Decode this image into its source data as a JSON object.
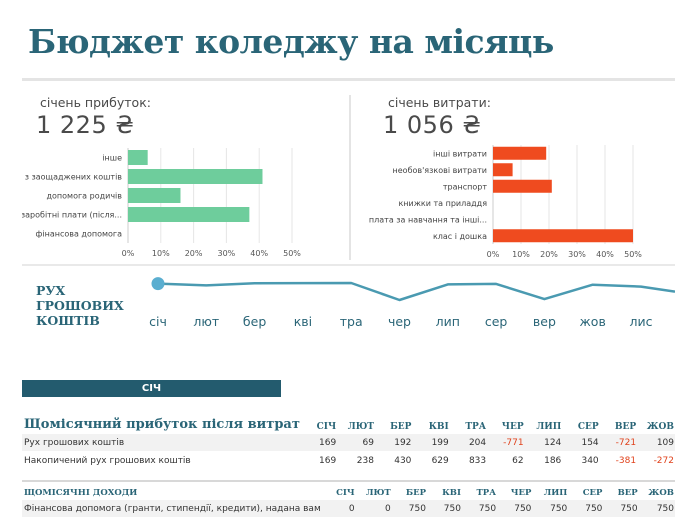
{
  "title": "Бюджет коледжу на місяць",
  "income_panel": {
    "label": "січень прибуток:",
    "total": "1 225 ₴",
    "color": "#6ecd9c",
    "chart_data": {
      "type": "bar",
      "orientation": "horizontal",
      "categories": [
        "інше",
        "з заощаджених коштів",
        "допомога родичів",
        "заробітні плати (після...",
        "фінансова допомога"
      ],
      "values": [
        6,
        41,
        16,
        37,
        0
      ],
      "x_ticks": [
        "0%",
        "10%",
        "20%",
        "30%",
        "40%",
        "50%"
      ],
      "xlim": [
        0,
        50
      ]
    }
  },
  "expense_panel": {
    "label": "січень витрати:",
    "total": "1 056 ₴",
    "color": "#ef4b1f",
    "chart_data": {
      "type": "bar",
      "orientation": "horizontal",
      "categories": [
        "інші витрати",
        "необов'язкові витрати",
        "транспорт",
        "книжки та приладдя",
        "плата за навчання та інші...",
        "клас і дошка"
      ],
      "values": [
        19,
        7,
        21,
        0,
        0,
        50
      ],
      "x_ticks": [
        "0%",
        "10%",
        "20%",
        "30%",
        "40%",
        "50%"
      ],
      "xlim": [
        0,
        50
      ]
    }
  },
  "cash_flow": {
    "title_lines": [
      "РУХ",
      "ГРОШОВИХ",
      "КОШТІВ"
    ],
    "color": "#4a9ab1",
    "months": [
      "січ",
      "лют",
      "бер",
      "кві",
      "тра",
      "чер",
      "лип",
      "сер",
      "вер",
      "жов",
      "лис"
    ],
    "values": [
      169,
      69,
      192,
      199,
      204,
      -771,
      124,
      154,
      -721,
      109,
      0
    ]
  },
  "selected_month": "СІЧ",
  "months_short": [
    "СІЧ",
    "ЛЮТ",
    "БЕР",
    "КВІ",
    "ТРА",
    "ЧЕР",
    "ЛИП",
    "СЕР",
    "ВЕР",
    "ЖОВ"
  ],
  "net_table": {
    "heading": "Щомісячний прибуток після витрат",
    "rows": [
      {
        "label": "Рух грошових коштів",
        "values": [
          "169",
          "69",
          "192",
          "199",
          "204",
          "-771",
          "124",
          "154",
          "-721",
          "109"
        ]
      },
      {
        "label": "Накопичений рух грошових коштів",
        "values": [
          "169",
          "238",
          "430",
          "629",
          "833",
          "62",
          "186",
          "340",
          "-381",
          "-272"
        ]
      }
    ]
  },
  "income_table": {
    "heading": "ЩОМІСЯЧНІ ДОХОДИ",
    "rows": [
      {
        "label": "Фінансова допомога (гранти, стипендії, кредити), надана вам",
        "values": [
          "0",
          "0",
          "750",
          "750",
          "750",
          "750",
          "750",
          "750",
          "750",
          "750"
        ]
      }
    ]
  }
}
